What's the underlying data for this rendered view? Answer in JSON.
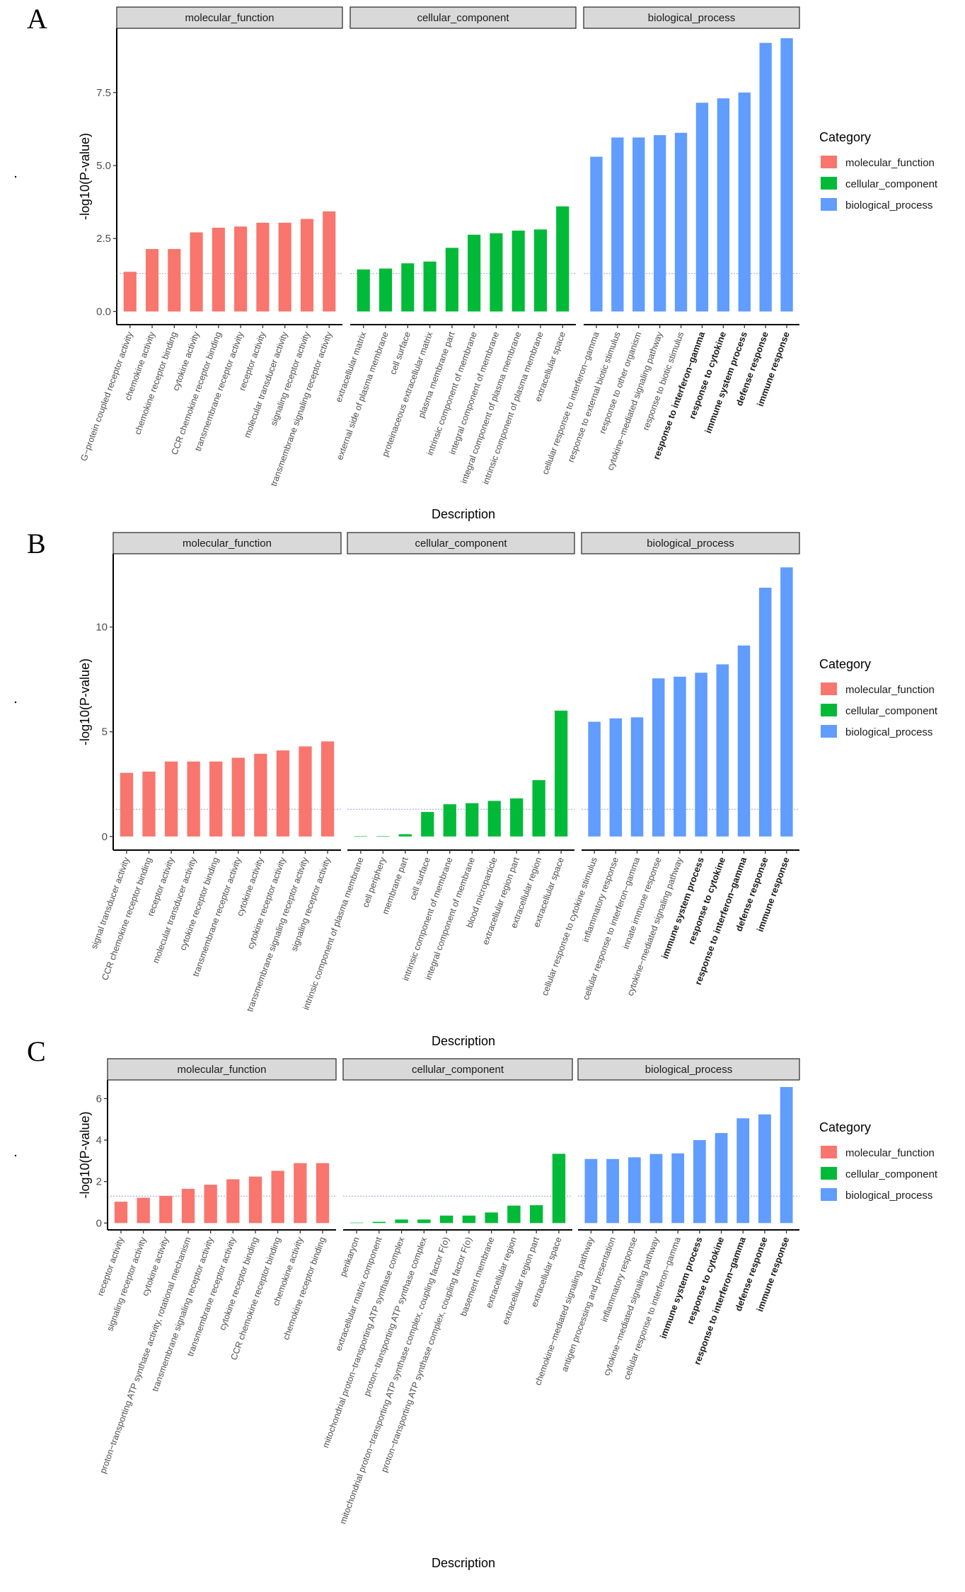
{
  "chart_data": [
    {
      "panel_label": "A",
      "type": "bar",
      "xlabel": "Description",
      "ylabel": "-log10(P-value)",
      "ylim": [
        -0.45,
        9.7
      ],
      "yticks": [
        0.0,
        2.5,
        5.0,
        7.5
      ],
      "ytick_labels": [
        "0.0",
        "2.5",
        "5.0",
        "7.5"
      ],
      "reference_line": 1.3,
      "legend": {
        "title": "Category",
        "position": "right",
        "entries": [
          "molecular_function",
          "cellular_component",
          "biological_process"
        ]
      },
      "facets": [
        {
          "name": "molecular_function",
          "color": "#F8766D",
          "categories": [
            "G−protein coupled receptor activity",
            "chemokine activity",
            "chemokine receptor binding",
            "cytokine activity",
            "CCR chemokine receptor binding",
            "transmembrane receptor activity",
            "receptor activity",
            "molecular transducer activity",
            "signaling receptor activity",
            "transmembrane signaling receptor activity"
          ],
          "values": [
            1.36,
            2.14,
            2.14,
            2.71,
            2.87,
            2.91,
            3.04,
            3.04,
            3.17,
            3.43
          ],
          "bold": []
        },
        {
          "name": "cellular_component",
          "color": "#00BA38",
          "categories": [
            "extracellular matrix",
            "external side of plasma membrane",
            "cell surface",
            "proteinaceous extracellular matrix",
            "plasma membrane part",
            "intrinsic component of membrane",
            "integral component of membrane",
            "integral component of plasma membrane",
            "intrinsic component of plasma membrane",
            "extracellular space"
          ],
          "values": [
            1.44,
            1.47,
            1.65,
            1.71,
            2.18,
            2.63,
            2.68,
            2.77,
            2.81,
            3.6
          ],
          "bold": []
        },
        {
          "name": "biological_process",
          "color": "#619CFF",
          "categories": [
            "cellular response to interferon−gamma",
            "response to external biotic stimulus",
            "response to other organism",
            "cytokine−mediated signaling pathway",
            "response to biotic stimulus",
            "response to interferon−gamma",
            "response to cytokine",
            "immune system process",
            "defense response",
            "immune response"
          ],
          "values": [
            5.3,
            5.96,
            5.96,
            6.04,
            6.12,
            7.15,
            7.3,
            7.5,
            9.2,
            9.36
          ],
          "bold": [
            5,
            6,
            7,
            8,
            9
          ]
        }
      ]
    },
    {
      "panel_label": "B",
      "type": "bar",
      "xlabel": "Description",
      "ylabel": "-log10(P-value)",
      "ylim": [
        -0.65,
        13.5
      ],
      "yticks": [
        0,
        5,
        10
      ],
      "ytick_labels": [
        "0",
        "5",
        "10"
      ],
      "reference_line": 1.3,
      "legend": {
        "title": "Category",
        "position": "right",
        "entries": [
          "molecular_function",
          "cellular_component",
          "biological_process"
        ]
      },
      "facets": [
        {
          "name": "molecular_function",
          "color": "#F8766D",
          "categories": [
            "signal transducer activity",
            "CCR chemokine receptor binding",
            "receptor activity",
            "molecular transducer activity",
            "cytokine receptor binding",
            "transmembrane receptor activity",
            "cytokine activity",
            "cytokine receptor activity",
            "transmembrane signaling receptor activity",
            "signaling receptor activity"
          ],
          "values": [
            3.04,
            3.1,
            3.58,
            3.58,
            3.58,
            3.76,
            3.95,
            4.11,
            4.3,
            4.54
          ],
          "bold": []
        },
        {
          "name": "cellular_component",
          "color": "#00BA38",
          "categories": [
            "intrinsic component of plasma membrane",
            "cell periphery",
            "membrane part",
            "cell surface",
            "intrinsic component of membrane",
            "integral component of membrane",
            "blood microparticle",
            "extracellular region part",
            "extracellular region",
            "extracellular space"
          ],
          "values": [
            0.01,
            0.01,
            0.11,
            1.17,
            1.54,
            1.59,
            1.7,
            1.82,
            2.69,
            6.01
          ],
          "bold": []
        },
        {
          "name": "biological_process",
          "color": "#619CFF",
          "categories": [
            "cellular response to cytokine stimulus",
            "inflammatory response",
            "cellular response to interferon−gamma",
            "innate immune response",
            "cytokine−mediated signaling pathway",
            "immune system process",
            "response to cytokine",
            "response to interferon−gamma",
            "defense response",
            "immune response"
          ],
          "values": [
            5.48,
            5.64,
            5.69,
            7.55,
            7.63,
            7.82,
            8.22,
            9.12,
            11.88,
            12.85
          ],
          "bold": [
            5,
            6,
            7,
            8,
            9
          ]
        }
      ]
    },
    {
      "panel_label": "C",
      "type": "bar",
      "xlabel": "Description",
      "ylabel": "-log10(P-value)",
      "ylim": [
        -0.33,
        6.9
      ],
      "yticks": [
        0,
        2,
        4,
        6
      ],
      "ytick_labels": [
        "0",
        "2",
        "4",
        "6"
      ],
      "reference_line": 1.3,
      "legend": {
        "title": "Category",
        "position": "right",
        "entries": [
          "molecular_function",
          "cellular_component",
          "biological_process"
        ]
      },
      "facets": [
        {
          "name": "molecular_function",
          "color": "#F8766D",
          "categories": [
            "receptor activity",
            "signaling receptor activity",
            "cytokine activity",
            "proton−transporting ATP synthase activity, rotational mechanism",
            "transmembrane signaling receptor activity",
            "transmembrane receptor activity",
            "cytokine receptor binding",
            "CCR chemokine receptor binding",
            "chemokine activity",
            "chemokine receptor binding"
          ],
          "values": [
            1.03,
            1.22,
            1.31,
            1.65,
            1.85,
            2.11,
            2.24,
            2.52,
            2.89,
            2.89
          ],
          "bold": []
        },
        {
          "name": "cellular_component",
          "color": "#00BA38",
          "categories": [
            "perikaryon",
            "extracellular matrix component",
            "mitochondrial proton−transporting ATP synthase complex",
            "proton−transporting ATP synthase complex",
            "mitochondrial proton−transporting ATP synthase complex, coupling factor F(o)",
            "proton−transporting ATP synthase complex, coupling factor F(o)",
            "basement membrane",
            "extracellular region",
            "extracellular region part",
            "extracellular space"
          ],
          "values": [
            0.0,
            0.06,
            0.17,
            0.17,
            0.36,
            0.36,
            0.51,
            0.84,
            0.86,
            3.34
          ],
          "bold": []
        },
        {
          "name": "biological_process",
          "color": "#619CFF",
          "categories": [
            "chemokine−mediated signaling pathway",
            "antigen processing and presentation",
            "inflammatory response",
            "cytokine−mediated signaling pathway",
            "cellular response to interferon−gamma",
            "immune system process",
            "response to cytokine",
            "response to interferon−gamma",
            "defense response",
            "immune response"
          ],
          "values": [
            3.09,
            3.09,
            3.17,
            3.33,
            3.36,
            4.0,
            4.34,
            5.05,
            5.24,
            6.56
          ],
          "bold": [
            5,
            6,
            7,
            8,
            9
          ]
        }
      ]
    }
  ]
}
